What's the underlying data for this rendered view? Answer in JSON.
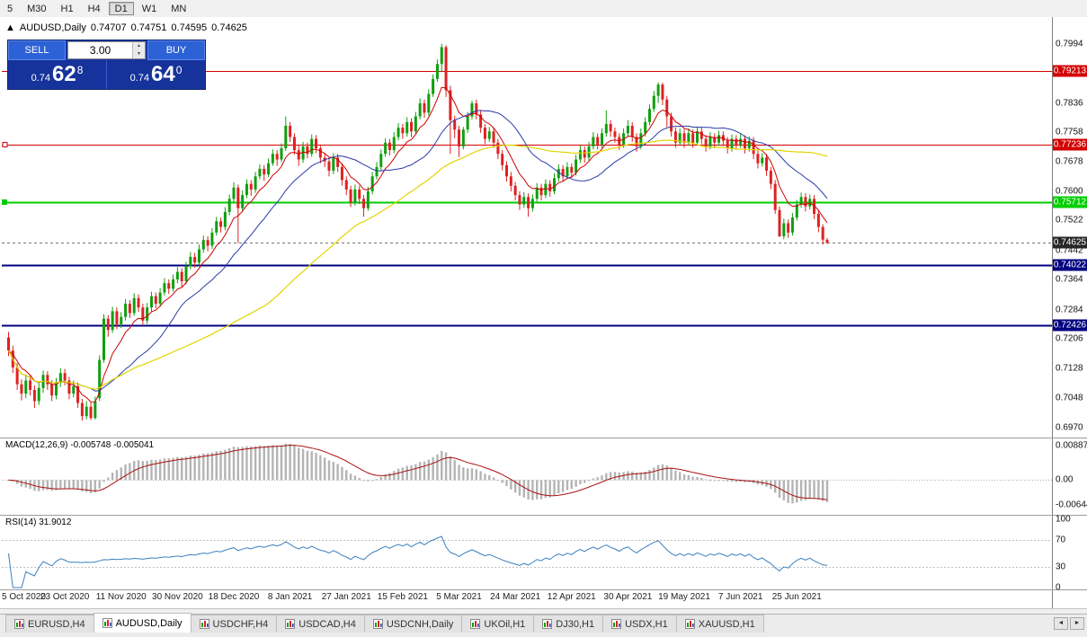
{
  "toolbar": {
    "buttons": [
      "5",
      "M30",
      "H1",
      "H4",
      "D1",
      "W1",
      "MN"
    ],
    "active": "D1"
  },
  "chart": {
    "symbol_header": {
      "direction_icon": "▲",
      "symbol": "AUDUSD,Daily",
      "open": "0.74707",
      "high": "0.74751",
      "low": "0.74595",
      "close": "0.74625"
    },
    "trade_panel": {
      "sell_label": "SELL",
      "buy_label": "BUY",
      "volume": "3.00",
      "spin_up": "▲",
      "spin_down": "▼",
      "sell_price_prefix": "0.74",
      "sell_price_big": "62",
      "sell_price_sup": "8",
      "buy_price_prefix": "0.74",
      "buy_price_big": "64",
      "buy_price_sup": "0"
    },
    "levels": [
      {
        "price": 0.79213,
        "label": "0.79213",
        "type": "red"
      },
      {
        "price": 0.77236,
        "label": "0.77236",
        "type": "red"
      },
      {
        "price": 0.75712,
        "label": "0.75712",
        "type": "green"
      },
      {
        "price": 0.74022,
        "label": "0.74022",
        "type": "navy"
      },
      {
        "price": 0.72426,
        "label": "0.72426",
        "type": "navy"
      }
    ],
    "current_price": {
      "price": 0.74625,
      "label": "0.74625"
    }
  },
  "macd": {
    "label_text": "MACD(12,26,9) -0.005748 -0.005041",
    "axis": [
      {
        "v": 0.008877,
        "label": "0.008877"
      },
      {
        "v": 0,
        "label": "0.00"
      },
      {
        "v": -0.006445,
        "label": "-0.006445"
      }
    ]
  },
  "rsi": {
    "label_text": "RSI(14) 31.9012",
    "axis": [
      {
        "v": 100,
        "label": "100"
      },
      {
        "v": 70,
        "label": "70"
      },
      {
        "v": 30,
        "label": "30"
      },
      {
        "v": 0,
        "label": "0"
      }
    ]
  },
  "tabs": {
    "active": "AUDUSD,Daily",
    "scroll_left": "◄",
    "scroll_right": "►",
    "items": [
      "EURUSD,H4",
      "AUDUSD,Daily",
      "USDCHF,H4",
      "USDCAD,H4",
      "USDCNH,Daily",
      "UKOil,H1",
      "DJ30,H1",
      "USDX,H1",
      "XAUUSD,H1"
    ]
  },
  "colors": {
    "up": "#0ea00e",
    "down": "#dd2222",
    "ma_fast": "#cc0000",
    "ma_mid": "#2a3aa8",
    "ma_slow": "#e3d400",
    "macd_hist": "#b4b4b4",
    "macd_signal": "#aa1111",
    "rsi_line": "#3a80c0",
    "level_red": "#d40000",
    "level_green": "#00ce00",
    "level_navy": "#000080",
    "badge_current_bg": "#262626",
    "panel_navy": "#16339b",
    "button_blue": "#2d62d6"
  },
  "chart_data": {
    "type": "candlestick",
    "symbol": "AUDUSD",
    "timeframe": "Daily",
    "ohlc_current": {
      "open": 0.74707,
      "high": 0.74751,
      "low": 0.74595,
      "close": 0.74625
    },
    "price_axis_ticks": [
      0.7994,
      0.7916,
      0.7836,
      0.7758,
      0.7678,
      0.76,
      0.7522,
      0.7442,
      0.7364,
      0.7284,
      0.7206,
      0.7128,
      0.7048,
      0.697
    ],
    "x_labels": [
      "5 Oct 2020",
      "23 Oct 2020",
      "11 Nov 2020",
      "30 Nov 2020",
      "18 Dec 2020",
      "8 Jan 2021",
      "27 Jan 2021",
      "15 Feb 2021",
      "5 Mar 2021",
      "24 Mar 2021",
      "12 Apr 2021",
      "30 Apr 2021",
      "19 May 2021",
      "7 Jun 2021",
      "25 Jun 2021"
    ],
    "x_label_bar_step": 13,
    "indicator_values": {
      "macd_main": -0.005748,
      "macd_signal": -0.005041,
      "rsi": 31.9012
    },
    "candles": [
      [
        0.721,
        0.7225,
        0.716,
        0.7175
      ],
      [
        0.7175,
        0.7188,
        0.7115,
        0.713
      ],
      [
        0.713,
        0.7142,
        0.707,
        0.7085
      ],
      [
        0.7085,
        0.7098,
        0.7042,
        0.706
      ],
      [
        0.706,
        0.7108,
        0.7048,
        0.7095
      ],
      [
        0.7095,
        0.711,
        0.7055,
        0.707
      ],
      [
        0.707,
        0.7082,
        0.7022,
        0.704
      ],
      [
        0.704,
        0.709,
        0.703,
        0.7075
      ],
      [
        0.7075,
        0.7122,
        0.7062,
        0.711
      ],
      [
        0.711,
        0.712,
        0.707,
        0.7085
      ],
      [
        0.7085,
        0.7096,
        0.704,
        0.7055
      ],
      [
        0.7055,
        0.7102,
        0.7045,
        0.709
      ],
      [
        0.709,
        0.7128,
        0.7078,
        0.7115
      ],
      [
        0.7115,
        0.7126,
        0.7082,
        0.7095
      ],
      [
        0.7095,
        0.7105,
        0.7045,
        0.706
      ],
      [
        0.706,
        0.7095,
        0.705,
        0.708
      ],
      [
        0.708,
        0.709,
        0.7022,
        0.7035
      ],
      [
        0.7035,
        0.7046,
        0.6988,
        0.7
      ],
      [
        0.7,
        0.704,
        0.6992,
        0.7025
      ],
      [
        0.7025,
        0.7036,
        0.699,
        0.6995
      ],
      [
        0.6995,
        0.7052,
        0.6991,
        0.704
      ],
      [
        0.7048,
        0.7162,
        0.704,
        0.715
      ],
      [
        0.715,
        0.7272,
        0.7142,
        0.726
      ],
      [
        0.726,
        0.727,
        0.7212,
        0.723
      ],
      [
        0.723,
        0.7292,
        0.7222,
        0.728
      ],
      [
        0.728,
        0.729,
        0.7232,
        0.7245
      ],
      [
        0.7245,
        0.7278,
        0.7235,
        0.7265
      ],
      [
        0.7265,
        0.7312,
        0.7255,
        0.73
      ],
      [
        0.73,
        0.731,
        0.7262,
        0.7275
      ],
      [
        0.7275,
        0.7328,
        0.7268,
        0.7315
      ],
      [
        0.7315,
        0.7325,
        0.7278,
        0.729
      ],
      [
        0.729,
        0.73,
        0.7242,
        0.7255
      ],
      [
        0.7255,
        0.7302,
        0.7246,
        0.729
      ],
      [
        0.729,
        0.7332,
        0.728,
        0.732
      ],
      [
        0.732,
        0.733,
        0.7288,
        0.73
      ],
      [
        0.73,
        0.7342,
        0.7292,
        0.733
      ],
      [
        0.733,
        0.7368,
        0.7322,
        0.7355
      ],
      [
        0.7355,
        0.7365,
        0.7326,
        0.734
      ],
      [
        0.734,
        0.7378,
        0.7332,
        0.7365
      ],
      [
        0.7365,
        0.7398,
        0.7355,
        0.7385
      ],
      [
        0.7385,
        0.7395,
        0.7346,
        0.736
      ],
      [
        0.736,
        0.7412,
        0.7352,
        0.74
      ],
      [
        0.74,
        0.7438,
        0.7392,
        0.7425
      ],
      [
        0.7425,
        0.7436,
        0.7396,
        0.741
      ],
      [
        0.741,
        0.7458,
        0.7402,
        0.7445
      ],
      [
        0.7445,
        0.7482,
        0.7436,
        0.747
      ],
      [
        0.747,
        0.748,
        0.744,
        0.7455
      ],
      [
        0.7455,
        0.7502,
        0.7446,
        0.749
      ],
      [
        0.749,
        0.7532,
        0.7482,
        0.752
      ],
      [
        0.752,
        0.753,
        0.749,
        0.7505
      ],
      [
        0.7505,
        0.7558,
        0.7496,
        0.7545
      ],
      [
        0.7545,
        0.7592,
        0.7536,
        0.758
      ],
      [
        0.758,
        0.7624,
        0.7572,
        0.761
      ],
      [
        0.761,
        0.7618,
        0.7462,
        0.7555
      ],
      [
        0.7555,
        0.7602,
        0.7546,
        0.759
      ],
      [
        0.759,
        0.7632,
        0.7582,
        0.762
      ],
      [
        0.762,
        0.763,
        0.7588,
        0.7605
      ],
      [
        0.7605,
        0.7652,
        0.7596,
        0.764
      ],
      [
        0.764,
        0.7672,
        0.7632,
        0.766
      ],
      [
        0.766,
        0.767,
        0.7628,
        0.7645
      ],
      [
        0.7645,
        0.7688,
        0.7638,
        0.7675
      ],
      [
        0.7675,
        0.7712,
        0.7668,
        0.77
      ],
      [
        0.77,
        0.771,
        0.7668,
        0.7685
      ],
      [
        0.7685,
        0.7728,
        0.7678,
        0.7715
      ],
      [
        0.7715,
        0.78,
        0.7708,
        0.7775
      ],
      [
        0.7775,
        0.7785,
        0.7732,
        0.7745
      ],
      [
        0.7745,
        0.7755,
        0.7698,
        0.771
      ],
      [
        0.771,
        0.7722,
        0.7668,
        0.7685
      ],
      [
        0.7685,
        0.7732,
        0.7676,
        0.772
      ],
      [
        0.772,
        0.773,
        0.7688,
        0.77
      ],
      [
        0.77,
        0.7752,
        0.7692,
        0.774
      ],
      [
        0.774,
        0.775,
        0.7702,
        0.7715
      ],
      [
        0.7715,
        0.7725,
        0.7675,
        0.769
      ],
      [
        0.769,
        0.77,
        0.7665,
        0.768
      ],
      [
        0.768,
        0.769,
        0.764,
        0.7655
      ],
      [
        0.7655,
        0.7702,
        0.7646,
        0.769
      ],
      [
        0.769,
        0.77,
        0.7652,
        0.7665
      ],
      [
        0.7665,
        0.7675,
        0.7615,
        0.763
      ],
      [
        0.763,
        0.764,
        0.759,
        0.7605
      ],
      [
        0.7605,
        0.7615,
        0.7558,
        0.757
      ],
      [
        0.757,
        0.7618,
        0.7562,
        0.7605
      ],
      [
        0.7605,
        0.7615,
        0.7566,
        0.758
      ],
      [
        0.758,
        0.759,
        0.7532,
        0.7555
      ],
      [
        0.7555,
        0.7612,
        0.7548,
        0.76
      ],
      [
        0.76,
        0.7652,
        0.7592,
        0.764
      ],
      [
        0.764,
        0.7678,
        0.7632,
        0.7665
      ],
      [
        0.7665,
        0.7712,
        0.7656,
        0.77
      ],
      [
        0.77,
        0.7742,
        0.7692,
        0.773
      ],
      [
        0.773,
        0.774,
        0.7696,
        0.771
      ],
      [
        0.771,
        0.7758,
        0.7702,
        0.7745
      ],
      [
        0.7745,
        0.7782,
        0.7736,
        0.777
      ],
      [
        0.777,
        0.778,
        0.774,
        0.7755
      ],
      [
        0.7755,
        0.7798,
        0.7746,
        0.7785
      ],
      [
        0.7785,
        0.7795,
        0.7745,
        0.776
      ],
      [
        0.776,
        0.7812,
        0.7752,
        0.78
      ],
      [
        0.78,
        0.7848,
        0.7792,
        0.7835
      ],
      [
        0.7835,
        0.7845,
        0.7796,
        0.781
      ],
      [
        0.781,
        0.7872,
        0.7802,
        0.786
      ],
      [
        0.786,
        0.7912,
        0.7852,
        0.79
      ],
      [
        0.79,
        0.7952,
        0.7892,
        0.794
      ],
      [
        0.794,
        0.7994,
        0.7918,
        0.7985
      ],
      [
        0.7985,
        0.799,
        0.7852,
        0.787
      ],
      [
        0.787,
        0.7882,
        0.77,
        0.779
      ],
      [
        0.779,
        0.7802,
        0.7742,
        0.7765
      ],
      [
        0.7765,
        0.7775,
        0.7692,
        0.772
      ],
      [
        0.772,
        0.7772,
        0.7712,
        0.7765
      ],
      [
        0.7765,
        0.7812,
        0.7756,
        0.78
      ],
      [
        0.78,
        0.7842,
        0.7792,
        0.7835
      ],
      [
        0.7835,
        0.7845,
        0.7792,
        0.7805
      ],
      [
        0.7805,
        0.7815,
        0.7756,
        0.777
      ],
      [
        0.777,
        0.778,
        0.7726,
        0.774
      ],
      [
        0.774,
        0.7772,
        0.7732,
        0.776
      ],
      [
        0.776,
        0.777,
        0.7716,
        0.773
      ],
      [
        0.773,
        0.774,
        0.7686,
        0.77
      ],
      [
        0.77,
        0.771,
        0.7656,
        0.767
      ],
      [
        0.767,
        0.768,
        0.7626,
        0.764
      ],
      [
        0.764,
        0.7652,
        0.76,
        0.7615
      ],
      [
        0.7615,
        0.7625,
        0.7576,
        0.759
      ],
      [
        0.759,
        0.76,
        0.755,
        0.7565
      ],
      [
        0.7565,
        0.7598,
        0.7556,
        0.7585
      ],
      [
        0.7585,
        0.7595,
        0.7532,
        0.7555
      ],
      [
        0.7555,
        0.7592,
        0.7546,
        0.758
      ],
      [
        0.758,
        0.7622,
        0.7572,
        0.761
      ],
      [
        0.761,
        0.762,
        0.7576,
        0.759
      ],
      [
        0.759,
        0.7632,
        0.7582,
        0.762
      ],
      [
        0.762,
        0.763,
        0.7586,
        0.76
      ],
      [
        0.76,
        0.7648,
        0.7592,
        0.7635
      ],
      [
        0.7635,
        0.7672,
        0.7626,
        0.766
      ],
      [
        0.766,
        0.767,
        0.7626,
        0.764
      ],
      [
        0.764,
        0.7678,
        0.7632,
        0.7665
      ],
      [
        0.7665,
        0.7675,
        0.7636,
        0.765
      ],
      [
        0.765,
        0.7698,
        0.7642,
        0.7685
      ],
      [
        0.7685,
        0.7722,
        0.7676,
        0.771
      ],
      [
        0.771,
        0.772,
        0.7676,
        0.769
      ],
      [
        0.769,
        0.7732,
        0.7682,
        0.772
      ],
      [
        0.772,
        0.7758,
        0.7712,
        0.7745
      ],
      [
        0.7745,
        0.7755,
        0.7712,
        0.7725
      ],
      [
        0.7725,
        0.7768,
        0.7716,
        0.7755
      ],
      [
        0.7755,
        0.7816,
        0.7746,
        0.778
      ],
      [
        0.778,
        0.779,
        0.7746,
        0.776
      ],
      [
        0.776,
        0.777,
        0.773,
        0.7745
      ],
      [
        0.7745,
        0.7755,
        0.771,
        0.7725
      ],
      [
        0.7725,
        0.7768,
        0.7716,
        0.7755
      ],
      [
        0.7755,
        0.779,
        0.7746,
        0.7775
      ],
      [
        0.7775,
        0.7785,
        0.7732,
        0.7745
      ],
      [
        0.7745,
        0.7755,
        0.7706,
        0.772
      ],
      [
        0.772,
        0.7768,
        0.7712,
        0.7755
      ],
      [
        0.7755,
        0.7798,
        0.7746,
        0.7785
      ],
      [
        0.7785,
        0.7832,
        0.7776,
        0.782
      ],
      [
        0.782,
        0.7868,
        0.7812,
        0.7855
      ],
      [
        0.7855,
        0.7891,
        0.7836,
        0.7885
      ],
      [
        0.7885,
        0.789,
        0.783,
        0.7845
      ],
      [
        0.7845,
        0.7855,
        0.7772,
        0.78
      ],
      [
        0.78,
        0.781,
        0.7746,
        0.776
      ],
      [
        0.776,
        0.777,
        0.7716,
        0.773
      ],
      [
        0.773,
        0.7768,
        0.7722,
        0.7755
      ],
      [
        0.7755,
        0.7765,
        0.7716,
        0.773
      ],
      [
        0.773,
        0.7768,
        0.7722,
        0.7755
      ],
      [
        0.7755,
        0.7765,
        0.7716,
        0.773
      ],
      [
        0.773,
        0.7772,
        0.7722,
        0.776
      ],
      [
        0.776,
        0.777,
        0.7726,
        0.774
      ],
      [
        0.774,
        0.775,
        0.7706,
        0.772
      ],
      [
        0.772,
        0.7758,
        0.7712,
        0.7745
      ],
      [
        0.7745,
        0.7755,
        0.7716,
        0.773
      ],
      [
        0.773,
        0.7762,
        0.7722,
        0.775
      ],
      [
        0.775,
        0.776,
        0.7721,
        0.7735
      ],
      [
        0.7735,
        0.7745,
        0.7701,
        0.7715
      ],
      [
        0.7715,
        0.7752,
        0.7706,
        0.774
      ],
      [
        0.774,
        0.775,
        0.7711,
        0.7725
      ],
      [
        0.7725,
        0.7753,
        0.7716,
        0.774
      ],
      [
        0.774,
        0.775,
        0.7701,
        0.7715
      ],
      [
        0.7715,
        0.7747,
        0.7706,
        0.7735
      ],
      [
        0.7735,
        0.7745,
        0.7686,
        0.77
      ],
      [
        0.77,
        0.771,
        0.7661,
        0.7675
      ],
      [
        0.7675,
        0.7702,
        0.7666,
        0.769
      ],
      [
        0.769,
        0.77,
        0.7641,
        0.7655
      ],
      [
        0.7655,
        0.7665,
        0.7606,
        0.762
      ],
      [
        0.762,
        0.763,
        0.754,
        0.755
      ],
      [
        0.755,
        0.756,
        0.7478,
        0.748
      ],
      [
        0.748,
        0.7527,
        0.7472,
        0.7515
      ],
      [
        0.7515,
        0.7525,
        0.7476,
        0.749
      ],
      [
        0.749,
        0.7542,
        0.7482,
        0.753
      ],
      [
        0.753,
        0.7577,
        0.7522,
        0.7565
      ],
      [
        0.7565,
        0.7597,
        0.7556,
        0.7585
      ],
      [
        0.7585,
        0.7595,
        0.7546,
        0.756
      ],
      [
        0.756,
        0.7592,
        0.7551,
        0.758
      ],
      [
        0.758,
        0.759,
        0.7526,
        0.754
      ],
      [
        0.754,
        0.755,
        0.7491,
        0.7505
      ],
      [
        0.7505,
        0.7512,
        0.7458,
        0.7471
      ],
      [
        0.74707,
        0.74751,
        0.74595,
        0.74625
      ]
    ]
  }
}
